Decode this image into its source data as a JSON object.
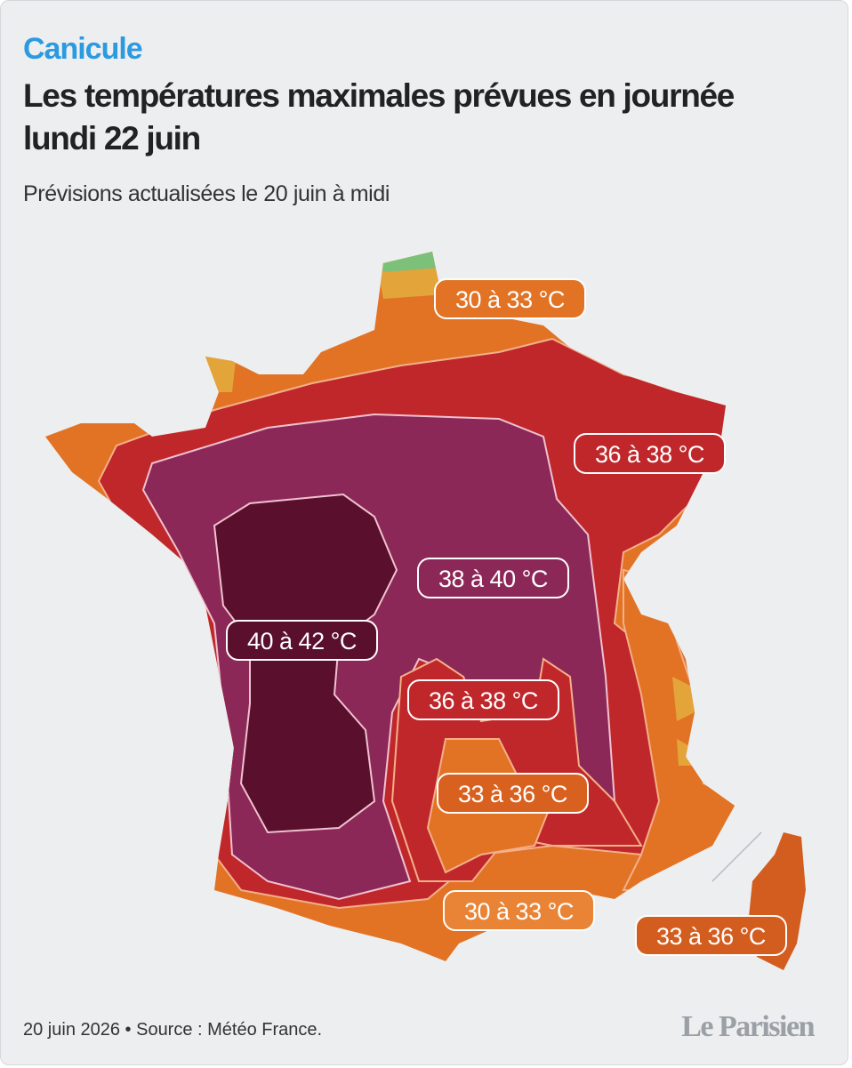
{
  "header": {
    "kicker": "Canicule",
    "title": [
      "Les températures maximales prévues en journée",
      "lundi 22 juin"
    ],
    "subtitle": "Prévisions actualisées le 20 juin à midi"
  },
  "map": {
    "labels": [
      "30 à 33 °C",
      "36 à 38 °C",
      "38 à 40 °C",
      "40 à 42 °C",
      "36 à 38 °C",
      "33 à 36 °C",
      "30 à 33 °C",
      "33 à 36 °C"
    ]
  },
  "footer": {
    "source": "20 juin 2026 • Source : Météo France.",
    "brand": "Le Parisien"
  }
}
